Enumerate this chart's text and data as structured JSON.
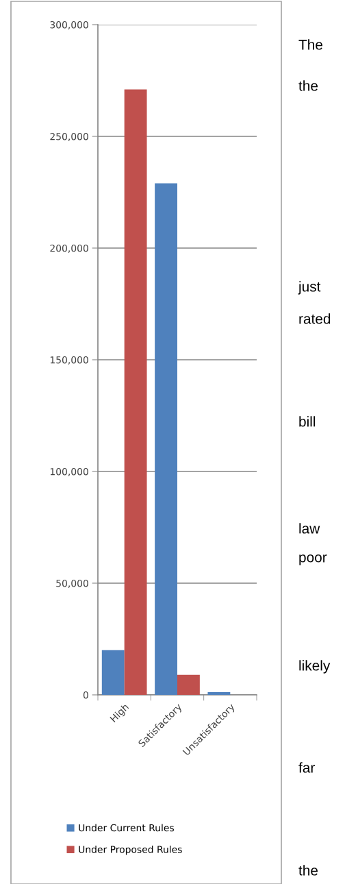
{
  "chart_data": {
    "type": "bar",
    "categories": [
      "High",
      "Satisfactory",
      "Unsatisfactory"
    ],
    "series": [
      {
        "name": "Under Current Rules",
        "color": "#4f81bd",
        "values": [
          20000,
          229000,
          1200
        ]
      },
      {
        "name": "Under Proposed Rules",
        "color": "#c0504d",
        "values": [
          271000,
          9000,
          0
        ]
      }
    ],
    "ylim": [
      0,
      300000
    ],
    "yticks": [
      {
        "value": 0,
        "label": "0"
      },
      {
        "value": 50000,
        "label": "50,000"
      },
      {
        "value": 100000,
        "label": "100,000"
      },
      {
        "value": 150000,
        "label": "150,000"
      },
      {
        "value": 200000,
        "label": "200,000"
      },
      {
        "value": 250000,
        "label": "250,000"
      },
      {
        "value": 300000,
        "label": "300,000"
      }
    ],
    "grid": "y",
    "legend": "bottom",
    "annotations": [
      "The",
      "the",
      "just",
      "rated",
      "bill",
      "law",
      "poor",
      "likely",
      "far",
      "the"
    ]
  }
}
